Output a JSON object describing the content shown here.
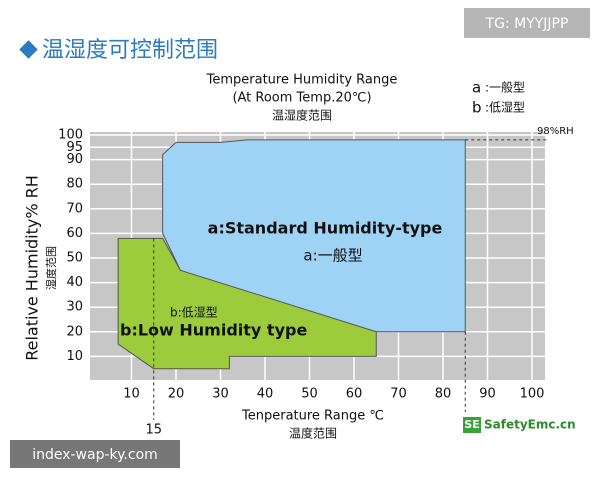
{
  "chart_data": {
    "type": "region",
    "heading": "温湿度可控制范围",
    "title": [
      "Temperature Humidity Range",
      "(At Room Temp.20℃)",
      "温湿度范围"
    ],
    "x_label": [
      "Tenperature Range ℃",
      "温度范围"
    ],
    "y_label": [
      "Relative Humidity% RH",
      "湿度范围"
    ],
    "xlim": [
      0,
      100
    ],
    "ylim": [
      0,
      100
    ],
    "xticks": [
      10,
      20,
      30,
      40,
      50,
      60,
      70,
      80,
      90,
      100
    ],
    "yticks": [
      10,
      20,
      30,
      40,
      50,
      60,
      70,
      80,
      90,
      95,
      100
    ],
    "grid": true,
    "legend": [
      {
        "key": "a",
        "label": ":一般型"
      },
      {
        "key": "b",
        "label": ":低湿型"
      }
    ],
    "series": [
      {
        "name": "a:Standard Humidity-type",
        "subname": "a:一般型",
        "color": "#9fd3f5",
        "x": [
          17,
          17,
          20,
          30,
          36,
          85,
          85,
          58,
          21
        ],
        "y": [
          60,
          92,
          97,
          97,
          98,
          98,
          20,
          20,
          45
        ]
      },
      {
        "name": "b:Low Humidity  type",
        "subname": "b:低湿型",
        "color": "#9ccc3c",
        "x": [
          7,
          17,
          21,
          65,
          65,
          32,
          32,
          15,
          7
        ],
        "y": [
          58,
          58,
          45,
          20,
          10,
          10,
          5,
          5,
          15
        ]
      }
    ],
    "vline": {
      "value": 15
    },
    "hline": {
      "value": 98,
      "label": "98%RH"
    }
  },
  "watermarks": {
    "top": "TG: MYYJJPP",
    "bottom": "index-wap-ky.com",
    "logo_mark": "SE",
    "logo_text": "SafetyEmc.cn"
  }
}
